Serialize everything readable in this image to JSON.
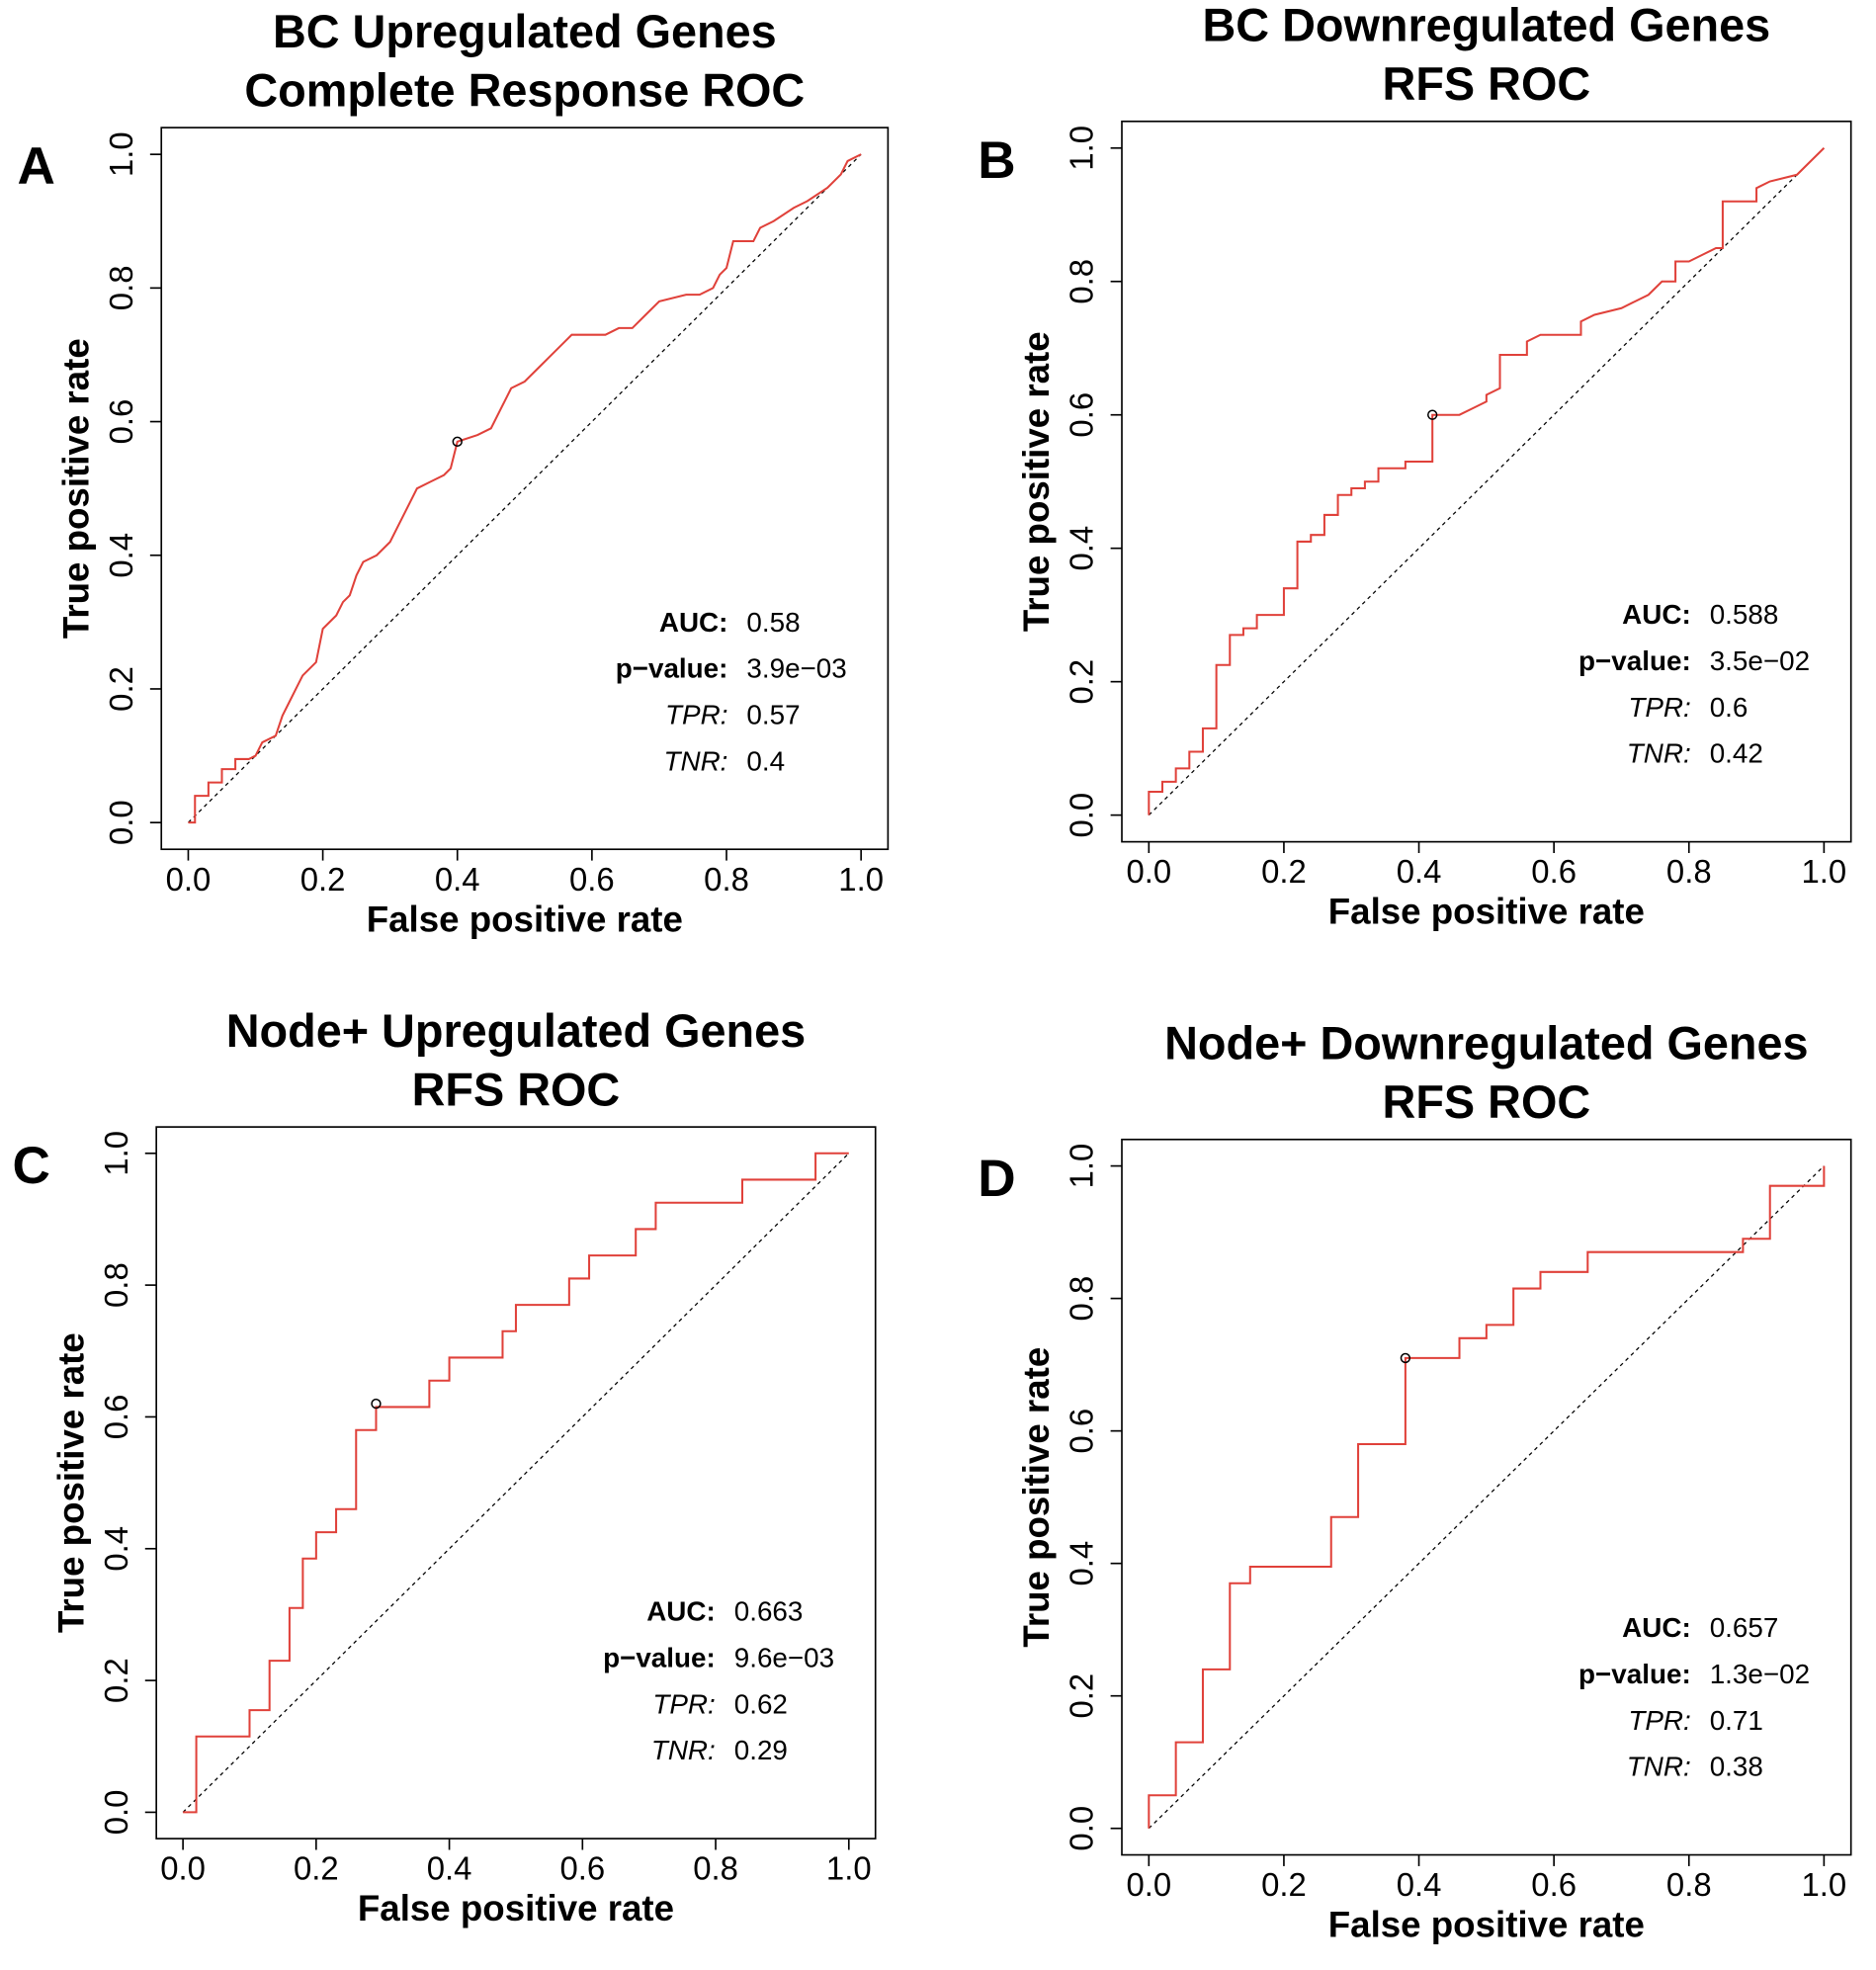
{
  "chart_data": [
    {
      "type": "roc",
      "label": "A",
      "title": [
        "BC Upregulated Genes",
        "Complete Response ROC"
      ],
      "xlabel": "False positive rate",
      "ylabel": "True positive rate",
      "xlim": [
        -0.04,
        1.04
      ],
      "ylim": [
        -0.04,
        1.04
      ],
      "xticks": [
        {
          "value": 0,
          "label": "0.0"
        },
        0.2,
        0.4,
        0.6,
        0.8,
        {
          "value": 1,
          "label": "1.0"
        }
      ],
      "yticks": [
        {
          "value": 0,
          "label": "0.0"
        },
        0.2,
        0.4,
        0.6,
        0.8,
        {
          "value": 1,
          "label": "1.0"
        }
      ],
      "color": "#e0413a",
      "x": [
        0,
        0.01,
        0.01,
        0.03,
        0.03,
        0.05,
        0.05,
        0.07,
        0.07,
        0.09,
        0.1,
        0.11,
        0.13,
        0.14,
        0.15,
        0.16,
        0.17,
        0.18,
        0.19,
        0.2,
        0.21,
        0.22,
        0.23,
        0.24,
        0.25,
        0.26,
        0.28,
        0.3,
        0.31,
        0.32,
        0.33,
        0.34,
        0.36,
        0.38,
        0.39,
        0.4,
        0.43,
        0.45,
        0.47,
        0.48,
        0.5,
        0.52,
        0.54,
        0.56,
        0.57,
        0.62,
        0.64,
        0.66,
        0.68,
        0.7,
        0.74,
        0.76,
        0.78,
        0.79,
        0.8,
        0.81,
        0.84,
        0.85,
        0.87,
        0.9,
        0.92,
        0.95,
        0.97,
        0.98,
        1
      ],
      "values": [
        0,
        0,
        0.04,
        0.04,
        0.06,
        0.06,
        0.08,
        0.08,
        0.095,
        0.095,
        0.1,
        0.12,
        0.13,
        0.16,
        0.18,
        0.2,
        0.22,
        0.23,
        0.24,
        0.29,
        0.3,
        0.31,
        0.33,
        0.34,
        0.37,
        0.39,
        0.4,
        0.42,
        0.44,
        0.46,
        0.48,
        0.5,
        0.51,
        0.52,
        0.53,
        0.57,
        0.58,
        0.59,
        0.63,
        0.65,
        0.66,
        0.68,
        0.7,
        0.72,
        0.73,
        0.73,
        0.74,
        0.74,
        0.76,
        0.78,
        0.79,
        0.79,
        0.8,
        0.82,
        0.83,
        0.87,
        0.87,
        0.89,
        0.9,
        0.92,
        0.93,
        0.95,
        0.97,
        0.99,
        1
      ],
      "reference_line": {
        "x": [
          0,
          1
        ],
        "values": [
          0,
          1
        ]
      },
      "point": {
        "x": 0.4,
        "y": 0.57
      },
      "annotations": [
        {
          "label": "AUC:",
          "value": "0.58"
        },
        {
          "label": "p−value:",
          "value": "3.9e−03"
        },
        {
          "label": "TPR:",
          "value": "0.57"
        },
        {
          "label": "TNR:",
          "value": "0.4"
        }
      ]
    },
    {
      "type": "roc",
      "label": "B",
      "title": [
        "BC Downregulated Genes",
        "RFS ROC"
      ],
      "xlabel": "False positive rate",
      "ylabel": "True positive rate",
      "xlim": [
        -0.04,
        1.04
      ],
      "ylim": [
        -0.04,
        1.04
      ],
      "xticks": [
        {
          "value": 0,
          "label": "0.0"
        },
        0.2,
        0.4,
        0.6,
        0.8,
        {
          "value": 1,
          "label": "1.0"
        }
      ],
      "yticks": [
        {
          "value": 0,
          "label": "0.0"
        },
        0.2,
        0.4,
        0.6,
        0.8,
        {
          "value": 1,
          "label": "1.0"
        }
      ],
      "color": "#e0413a",
      "x": [
        0,
        0,
        0.02,
        0.02,
        0.04,
        0.04,
        0.06,
        0.06,
        0.08,
        0.08,
        0.1,
        0.1,
        0.12,
        0.12,
        0.14,
        0.14,
        0.16,
        0.16,
        0.2,
        0.2,
        0.22,
        0.22,
        0.24,
        0.24,
        0.26,
        0.26,
        0.28,
        0.28,
        0.3,
        0.3,
        0.32,
        0.32,
        0.34,
        0.34,
        0.38,
        0.38,
        0.42,
        0.42,
        0.46,
        0.48,
        0.5,
        0.5,
        0.52,
        0.52,
        0.56,
        0.56,
        0.58,
        0.64,
        0.64,
        0.66,
        0.7,
        0.72,
        0.74,
        0.76,
        0.78,
        0.78,
        0.8,
        0.82,
        0.84,
        0.85,
        0.85,
        0.9,
        0.9,
        0.92,
        0.96,
        0.98,
        1
      ],
      "values": [
        0,
        0.035,
        0.035,
        0.05,
        0.05,
        0.07,
        0.07,
        0.095,
        0.095,
        0.13,
        0.13,
        0.225,
        0.225,
        0.27,
        0.27,
        0.28,
        0.28,
        0.3,
        0.3,
        0.34,
        0.34,
        0.41,
        0.41,
        0.42,
        0.42,
        0.45,
        0.45,
        0.48,
        0.48,
        0.49,
        0.49,
        0.5,
        0.5,
        0.52,
        0.52,
        0.53,
        0.53,
        0.6,
        0.6,
        0.61,
        0.62,
        0.63,
        0.64,
        0.69,
        0.69,
        0.71,
        0.72,
        0.72,
        0.74,
        0.75,
        0.76,
        0.77,
        0.78,
        0.8,
        0.8,
        0.83,
        0.83,
        0.84,
        0.85,
        0.85,
        0.92,
        0.92,
        0.94,
        0.95,
        0.96,
        0.98,
        1
      ],
      "reference_line": {
        "x": [
          0,
          1
        ],
        "values": [
          0,
          1
        ]
      },
      "point": {
        "x": 0.42,
        "y": 0.6
      },
      "annotations": [
        {
          "label": "AUC:",
          "value": "0.588"
        },
        {
          "label": "p−value:",
          "value": "3.5e−02"
        },
        {
          "label": "TPR:",
          "value": "0.6"
        },
        {
          "label": "TNR:",
          "value": "0.42"
        }
      ]
    },
    {
      "type": "roc",
      "label": "C",
      "title": [
        "Node+ Upregulated Genes",
        "RFS ROC"
      ],
      "xlabel": "False positive rate",
      "ylabel": "True positive rate",
      "xlim": [
        -0.04,
        1.04
      ],
      "ylim": [
        -0.04,
        1.04
      ],
      "xticks": [
        {
          "value": 0,
          "label": "0.0"
        },
        0.2,
        0.4,
        0.6,
        0.8,
        {
          "value": 1,
          "label": "1.0"
        }
      ],
      "yticks": [
        {
          "value": 0,
          "label": "0.0"
        },
        0.2,
        0.4,
        0.6,
        0.8,
        {
          "value": 1,
          "label": "1.0"
        }
      ],
      "color": "#e0413a",
      "x": [
        0,
        0.02,
        0.02,
        0.1,
        0.1,
        0.13,
        0.13,
        0.16,
        0.16,
        0.18,
        0.18,
        0.2,
        0.2,
        0.23,
        0.23,
        0.26,
        0.26,
        0.29,
        0.29,
        0.37,
        0.37,
        0.4,
        0.4,
        0.48,
        0.48,
        0.5,
        0.5,
        0.58,
        0.58,
        0.61,
        0.61,
        0.68,
        0.68,
        0.71,
        0.71,
        0.84,
        0.84,
        0.95,
        0.95,
        1
      ],
      "values": [
        0,
        0,
        0.115,
        0.115,
        0.155,
        0.155,
        0.23,
        0.23,
        0.31,
        0.31,
        0.385,
        0.385,
        0.425,
        0.425,
        0.46,
        0.46,
        0.58,
        0.58,
        0.615,
        0.615,
        0.655,
        0.655,
        0.69,
        0.69,
        0.73,
        0.73,
        0.77,
        0.77,
        0.81,
        0.81,
        0.845,
        0.845,
        0.885,
        0.885,
        0.925,
        0.925,
        0.96,
        0.96,
        1,
        1
      ],
      "reference_line": {
        "x": [
          0,
          1
        ],
        "values": [
          0,
          1
        ]
      },
      "point": {
        "x": 0.29,
        "y": 0.62
      },
      "annotations": [
        {
          "label": "AUC:",
          "value": "0.663"
        },
        {
          "label": "p−value:",
          "value": "9.6e−03"
        },
        {
          "label": "TPR:",
          "value": "0.62"
        },
        {
          "label": "TNR:",
          "value": "0.29"
        }
      ]
    },
    {
      "type": "roc",
      "label": "D",
      "title": [
        "Node+ Downregulated Genes",
        "RFS ROC"
      ],
      "xlabel": "False positive rate",
      "ylabel": "True positive rate",
      "xlim": [
        -0.04,
        1.04
      ],
      "ylim": [
        -0.04,
        1.04
      ],
      "xticks": [
        {
          "value": 0,
          "label": "0.0"
        },
        0.2,
        0.4,
        0.6,
        0.8,
        {
          "value": 1,
          "label": "1.0"
        }
      ],
      "yticks": [
        {
          "value": 0,
          "label": "0.0"
        },
        0.2,
        0.4,
        0.6,
        0.8,
        {
          "value": 1,
          "label": "1.0"
        }
      ],
      "color": "#e0413a",
      "x": [
        0,
        0,
        0.04,
        0.04,
        0.08,
        0.08,
        0.12,
        0.12,
        0.15,
        0.15,
        0.27,
        0.27,
        0.31,
        0.31,
        0.38,
        0.38,
        0.46,
        0.46,
        0.5,
        0.5,
        0.54,
        0.54,
        0.58,
        0.58,
        0.65,
        0.65,
        0.88,
        0.88,
        0.92,
        0.92,
        1,
        1
      ],
      "values": [
        0,
        0.05,
        0.05,
        0.13,
        0.13,
        0.24,
        0.24,
        0.37,
        0.37,
        0.395,
        0.395,
        0.47,
        0.47,
        0.58,
        0.58,
        0.71,
        0.71,
        0.74,
        0.74,
        0.76,
        0.76,
        0.815,
        0.815,
        0.84,
        0.84,
        0.87,
        0.87,
        0.89,
        0.89,
        0.97,
        0.97,
        1
      ],
      "reference_line": {
        "x": [
          0,
          1
        ],
        "values": [
          0,
          1
        ]
      },
      "point": {
        "x": 0.38,
        "y": 0.71
      },
      "annotations": [
        {
          "label": "AUC:",
          "value": "0.657"
        },
        {
          "label": "p−value:",
          "value": "1.3e−02"
        },
        {
          "label": "TPR:",
          "value": "0.71"
        },
        {
          "label": "TNR:",
          "value": "0.38"
        }
      ]
    }
  ]
}
